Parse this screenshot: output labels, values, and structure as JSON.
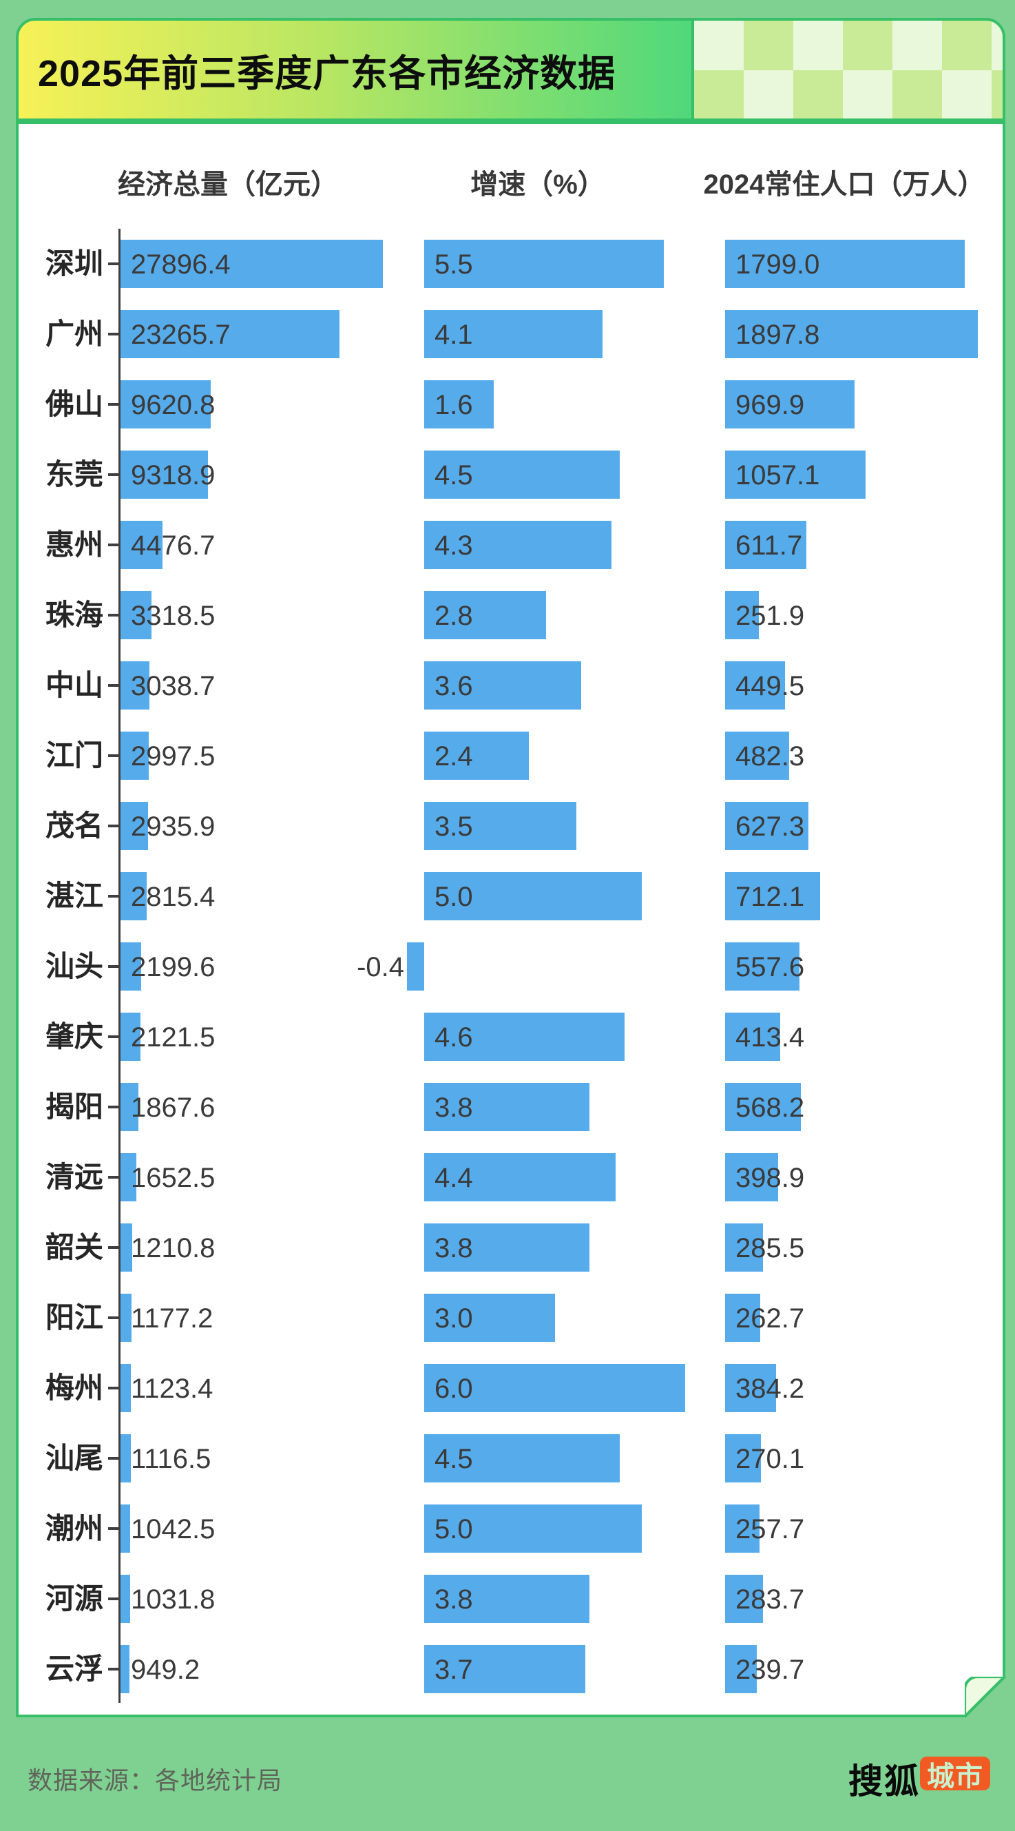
{
  "title": {
    "text": "2025年前三季度广东各市经济数据"
  },
  "footer": {
    "source": "数据来源：各地统计局",
    "logo_text": "搜狐",
    "logo_badge": "城市"
  },
  "colors": {
    "background_green": "#7ed190",
    "border_green": "#36bf68",
    "banner_yellow": "#f6f157",
    "banner_green": "#50d87b",
    "checker_light": "#e9f8da",
    "checker_green": "#c9ea97",
    "bar_blue": "#56abeb",
    "badge_orange": "#f15a22"
  },
  "chart_data": {
    "type": "bar",
    "orientation": "horizontal",
    "title": "2025年前三季度广东各市经济数据",
    "column_headers": [
      "经济总量（亿元）",
      "增速（%）",
      "2024常住人口（万人）"
    ],
    "categories": [
      "深圳",
      "广州",
      "佛山",
      "东莞",
      "惠州",
      "珠海",
      "中山",
      "江门",
      "茂名",
      "湛江",
      "汕头",
      "肇庆",
      "揭阳",
      "清远",
      "韶关",
      "阳江",
      "梅州",
      "汕尾",
      "潮州",
      "河源",
      "云浮"
    ],
    "series": [
      {
        "name": "经济总量（亿元）",
        "unit": "亿元",
        "values": [
          27896.4,
          23265.7,
          9620.8,
          9318.9,
          4476.7,
          3318.5,
          3038.7,
          2997.5,
          2935.9,
          2815.4,
          2199.6,
          2121.5,
          1867.6,
          1652.5,
          1210.8,
          1177.2,
          1123.4,
          1116.5,
          1042.5,
          1031.8,
          949.2
        ]
      },
      {
        "name": "增速（%）",
        "unit": "%",
        "values": [
          5.5,
          4.1,
          1.6,
          4.5,
          4.3,
          2.8,
          3.6,
          2.4,
          3.5,
          5.0,
          -0.4,
          4.6,
          3.8,
          4.4,
          3.8,
          3.0,
          6.0,
          4.5,
          5.0,
          3.8,
          3.7
        ]
      },
      {
        "name": "2024常住人口（万人）",
        "unit": "万人",
        "values": [
          1799.0,
          1897.8,
          969.9,
          1057.1,
          611.7,
          251.9,
          449.5,
          482.3,
          627.3,
          712.1,
          557.6,
          413.4,
          568.2,
          398.9,
          285.5,
          262.7,
          384.2,
          270.1,
          257.7,
          283.7,
          239.7
        ]
      }
    ],
    "value_labels": "one decimal place, drawn at the start of each bar",
    "bar_color": "#56abeb",
    "grid": false,
    "legend": false,
    "axis_ranges": [
      [
        0,
        27896.4
      ],
      [
        -0.4,
        6.0
      ],
      [
        0,
        1897.8
      ]
    ]
  }
}
